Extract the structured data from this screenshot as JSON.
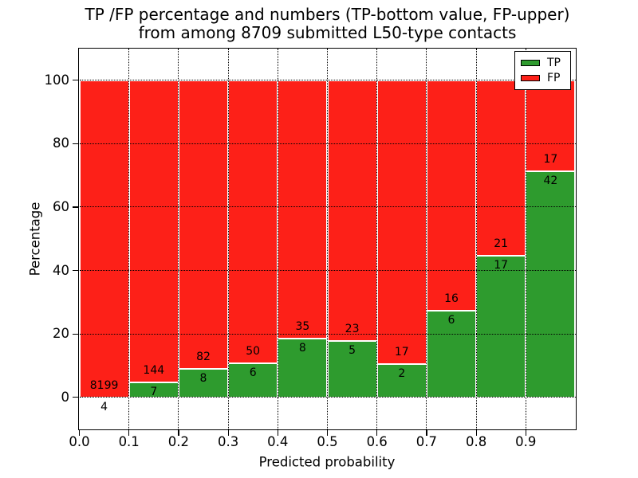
{
  "chart": {
    "title_line1": "TP /FP percentage and numbers (TP-bottom value, FP-upper)",
    "title_line2": "from among 8709 submitted L50-type contacts",
    "xlabel": "Predicted probability",
    "ylabel": "Percentage"
  },
  "chart_data": {
    "type": "bar",
    "subtype": "stacked-100-percent-histogram",
    "title": "TP /FP percentage and numbers (TP-bottom value, FP-upper) from among 8709 submitted L50-type contacts",
    "xlabel": "Predicted probability",
    "ylabel": "Percentage",
    "total_contacts": 8709,
    "bin_starts": [
      0.0,
      0.1,
      0.2,
      0.3,
      0.4,
      0.5,
      0.6,
      0.7,
      0.8,
      0.9
    ],
    "bin_width": 0.1,
    "series": [
      {
        "name": "TP",
        "color": "#2e9b2e",
        "counts": [
          4,
          7,
          8,
          6,
          8,
          5,
          2,
          6,
          17,
          42
        ]
      },
      {
        "name": "FP",
        "color": "#fd2018",
        "counts": [
          8199,
          144,
          82,
          50,
          35,
          23,
          17,
          16,
          21,
          17
        ]
      }
    ],
    "tp_percent_of_bin": [
      0.05,
      4.64,
      8.89,
      10.71,
      18.6,
      17.86,
      10.53,
      27.27,
      44.74,
      71.19
    ],
    "x_ticks": [
      "0.0",
      "0.1",
      "0.2",
      "0.3",
      "0.4",
      "0.5",
      "0.6",
      "0.7",
      "0.8",
      "0.9"
    ],
    "y_ticks": [
      "0",
      "20",
      "40",
      "60",
      "80",
      "100"
    ],
    "xlim": [
      0,
      1
    ],
    "ylim": [
      -10,
      110
    ],
    "grid": "dotted-black-over-bars",
    "legend": {
      "position": "upper right",
      "entries": [
        "TP",
        "FP"
      ]
    }
  }
}
